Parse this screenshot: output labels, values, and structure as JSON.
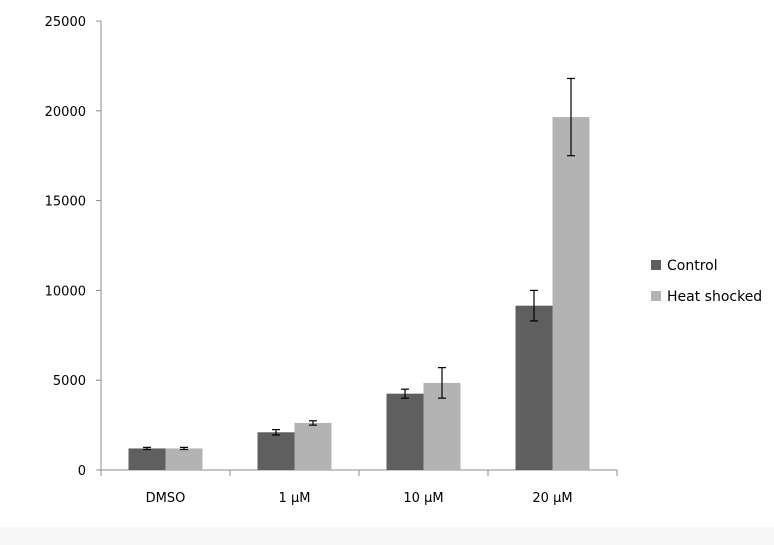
{
  "chart_data": {
    "type": "bar",
    "categories": [
      "DMSO",
      "1 μM",
      "10 μM",
      "20 μM"
    ],
    "series": [
      {
        "name": "Control",
        "color": "#5f5f5f",
        "values": [
          1200,
          2100,
          4250,
          9150
        ],
        "errors": [
          60,
          150,
          250,
          850
        ]
      },
      {
        "name": "Heat shocked",
        "color": "#b3b3b3",
        "values": [
          1200,
          2620,
          4850,
          19650
        ],
        "errors": [
          60,
          120,
          850,
          2150
        ]
      }
    ],
    "ylim": [
      0,
      25000
    ],
    "yticks": [
      "0",
      "5000",
      "10000",
      "15000",
      "20000",
      "25000"
    ],
    "title": "",
    "xlabel": "",
    "ylabel": "",
    "legend_position": "right",
    "grid": false
  }
}
